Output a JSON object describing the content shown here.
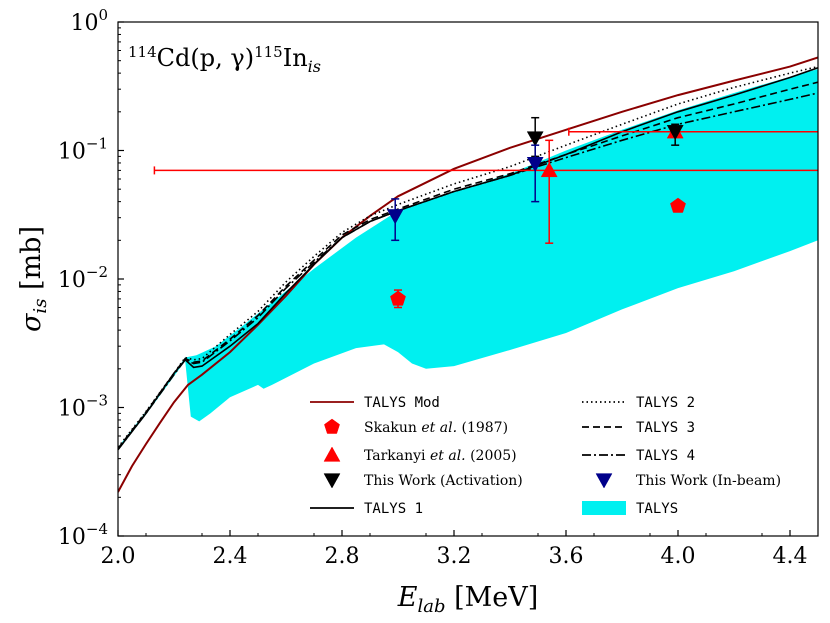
{
  "chart_data": {
    "type": "line",
    "title": "",
    "annotation": {
      "reaction_target_mass": "114",
      "reaction_target": "Cd",
      "reaction_channel": "(p, γ)",
      "reaction_product_mass": "115",
      "reaction_product": "In",
      "reaction_product_sub": "is"
    },
    "xlabel": {
      "symbol": "E",
      "sub": "lab",
      "unit": "[MeV]"
    },
    "ylabel": {
      "symbol": "σ",
      "sub": "is",
      "unit": "[mb]"
    },
    "xlim": [
      2.0,
      4.5
    ],
    "ylim": [
      0.0001,
      1
    ],
    "yscale": "log",
    "grid": false,
    "legend_position": "lower-right",
    "x_ticks": [
      {
        "value": 2.0,
        "label": "2.0"
      },
      {
        "value": 2.4,
        "label": "2.4"
      },
      {
        "value": 2.8,
        "label": "2.8"
      },
      {
        "value": 3.2,
        "label": "3.2"
      },
      {
        "value": 3.6,
        "label": "3.6"
      },
      {
        "value": 4.0,
        "label": "4.0"
      },
      {
        "value": 4.4,
        "label": "4.4"
      }
    ],
    "y_ticks": [
      {
        "value": 0.0001,
        "base": "10",
        "exp": "−4"
      },
      {
        "value": 0.001,
        "base": "10",
        "exp": "−3"
      },
      {
        "value": 0.01,
        "base": "10",
        "exp": "−2"
      },
      {
        "value": 0.1,
        "base": "10",
        "exp": "−1"
      },
      {
        "value": 1,
        "base": "10",
        "exp": "0"
      }
    ],
    "band": {
      "name": "TALYS",
      "color": "#00f0f0",
      "upper": [
        [
          2.0,
          0.00049
        ],
        [
          2.1,
          0.00093
        ],
        [
          2.2,
          0.00185
        ],
        [
          2.24,
          0.00245
        ],
        [
          2.28,
          0.00255
        ],
        [
          2.35,
          0.003
        ],
        [
          2.45,
          0.0044
        ],
        [
          2.55,
          0.0066
        ],
        [
          2.7,
          0.012
        ],
        [
          2.85,
          0.021
        ],
        [
          3.0,
          0.034
        ],
        [
          3.2,
          0.048
        ],
        [
          3.4,
          0.066
        ],
        [
          3.6,
          0.1
        ],
        [
          3.8,
          0.145
        ],
        [
          4.0,
          0.205
        ],
        [
          4.2,
          0.28
        ],
        [
          4.4,
          0.375
        ],
        [
          4.5,
          0.43
        ]
      ],
      "lower": [
        [
          2.0,
          0.00046
        ],
        [
          2.1,
          0.00088
        ],
        [
          2.2,
          0.00175
        ],
        [
          2.24,
          0.0023
        ],
        [
          2.26,
          0.00085
        ],
        [
          2.29,
          0.00078
        ],
        [
          2.33,
          0.0009
        ],
        [
          2.4,
          0.0012
        ],
        [
          2.5,
          0.0015
        ],
        [
          2.52,
          0.0014
        ],
        [
          2.55,
          0.0015
        ],
        [
          2.7,
          0.0022
        ],
        [
          2.85,
          0.0029
        ],
        [
          2.95,
          0.0031
        ],
        [
          3.0,
          0.0027
        ],
        [
          3.05,
          0.0022
        ],
        [
          3.1,
          0.002
        ],
        [
          3.2,
          0.0021
        ],
        [
          3.4,
          0.0028
        ],
        [
          3.6,
          0.0038
        ],
        [
          3.8,
          0.0058
        ],
        [
          4.0,
          0.0085
        ],
        [
          4.2,
          0.0115
        ],
        [
          4.4,
          0.0165
        ],
        [
          4.5,
          0.02
        ]
      ]
    },
    "series": [
      {
        "name": "TALYS Mod",
        "color": "#8b0000",
        "dash": "solid",
        "points": [
          [
            2.0,
            0.00022
          ],
          [
            2.05,
            0.00035
          ],
          [
            2.1,
            0.00052
          ],
          [
            2.15,
            0.00076
          ],
          [
            2.2,
            0.0011
          ],
          [
            2.25,
            0.0015
          ],
          [
            2.3,
            0.0018
          ],
          [
            2.4,
            0.0027
          ],
          [
            2.5,
            0.0044
          ],
          [
            2.6,
            0.0074
          ],
          [
            2.7,
            0.013
          ],
          [
            2.8,
            0.021
          ],
          [
            2.9,
            0.031
          ],
          [
            3.0,
            0.044
          ],
          [
            3.2,
            0.072
          ],
          [
            3.4,
            0.105
          ],
          [
            3.6,
            0.145
          ],
          [
            3.8,
            0.2
          ],
          [
            4.0,
            0.27
          ],
          [
            4.2,
            0.35
          ],
          [
            4.4,
            0.45
          ],
          [
            4.5,
            0.53
          ]
        ]
      },
      {
        "name": "TALYS 1",
        "color": "#000000",
        "dash": "solid",
        "points": [
          [
            2.0,
            0.00047
          ],
          [
            2.1,
            0.0009
          ],
          [
            2.2,
            0.00185
          ],
          [
            2.24,
            0.00235
          ],
          [
            2.27,
            0.00205
          ],
          [
            2.3,
            0.0021
          ],
          [
            2.4,
            0.003
          ],
          [
            2.5,
            0.0045
          ],
          [
            2.6,
            0.0078
          ],
          [
            2.7,
            0.013
          ],
          [
            2.8,
            0.021
          ],
          [
            2.9,
            0.028
          ],
          [
            3.0,
            0.034
          ],
          [
            3.2,
            0.048
          ],
          [
            3.4,
            0.064
          ],
          [
            3.6,
            0.093
          ],
          [
            3.8,
            0.14
          ],
          [
            4.0,
            0.2
          ],
          [
            4.2,
            0.27
          ],
          [
            4.4,
            0.37
          ],
          [
            4.5,
            0.44
          ]
        ]
      },
      {
        "name": "TALYS 2",
        "color": "#000000",
        "dash": "dotted",
        "points": [
          [
            2.0,
            0.00049
          ],
          [
            2.1,
            0.00093
          ],
          [
            2.2,
            0.00185
          ],
          [
            2.24,
            0.00245
          ],
          [
            2.27,
            0.00235
          ],
          [
            2.3,
            0.0024
          ],
          [
            2.4,
            0.0037
          ],
          [
            2.5,
            0.0056
          ],
          [
            2.6,
            0.0095
          ],
          [
            2.7,
            0.015
          ],
          [
            2.8,
            0.023
          ],
          [
            2.9,
            0.031
          ],
          [
            3.0,
            0.038
          ],
          [
            3.2,
            0.055
          ],
          [
            3.4,
            0.075
          ],
          [
            3.6,
            0.11
          ],
          [
            3.8,
            0.16
          ],
          [
            4.0,
            0.23
          ],
          [
            4.2,
            0.31
          ],
          [
            4.4,
            0.4
          ],
          [
            4.5,
            0.45
          ]
        ]
      },
      {
        "name": "TALYS 3",
        "color": "#000000",
        "dash": "dashed",
        "points": [
          [
            2.0,
            0.00048
          ],
          [
            2.1,
            0.00092
          ],
          [
            2.2,
            0.00185
          ],
          [
            2.24,
            0.0024
          ],
          [
            2.27,
            0.00225
          ],
          [
            2.3,
            0.0023
          ],
          [
            2.4,
            0.0034
          ],
          [
            2.5,
            0.0052
          ],
          [
            2.6,
            0.0088
          ],
          [
            2.7,
            0.014
          ],
          [
            2.8,
            0.022
          ],
          [
            2.9,
            0.029
          ],
          [
            3.0,
            0.035
          ],
          [
            3.2,
            0.05
          ],
          [
            3.4,
            0.066
          ],
          [
            3.6,
            0.093
          ],
          [
            3.8,
            0.13
          ],
          [
            4.0,
            0.18
          ],
          [
            4.2,
            0.23
          ],
          [
            4.4,
            0.3
          ],
          [
            4.5,
            0.34
          ]
        ]
      },
      {
        "name": "TALYS 4",
        "color": "#000000",
        "dash": "dashdot",
        "points": [
          [
            2.0,
            0.00047
          ],
          [
            2.1,
            0.0009
          ],
          [
            2.2,
            0.0018
          ],
          [
            2.24,
            0.00235
          ],
          [
            2.27,
            0.0022
          ],
          [
            2.3,
            0.00225
          ],
          [
            2.4,
            0.0033
          ],
          [
            2.5,
            0.005
          ],
          [
            2.6,
            0.0085
          ],
          [
            2.7,
            0.0135
          ],
          [
            2.8,
            0.021
          ],
          [
            2.9,
            0.028
          ],
          [
            3.0,
            0.034
          ],
          [
            3.2,
            0.048
          ],
          [
            3.4,
            0.064
          ],
          [
            3.6,
            0.088
          ],
          [
            3.8,
            0.12
          ],
          [
            4.0,
            0.16
          ],
          [
            4.2,
            0.2
          ],
          [
            4.4,
            0.25
          ],
          [
            4.5,
            0.28
          ]
        ]
      }
    ],
    "points": [
      {
        "name": "Skakun et al. (1987)",
        "color": "#ff0000",
        "marker": "pentagon",
        "data": [
          {
            "x": 3.0,
            "y": 0.007,
            "ylo": 0.006,
            "yhi": 0.0082
          },
          {
            "x": 4.0,
            "y": 0.037
          }
        ]
      },
      {
        "name": "Tarkanyi et al. (2005)",
        "color": "#ff0000",
        "marker": "triangle-up",
        "data": [
          {
            "x": 3.54,
            "y": 0.07,
            "ylo": 0.019,
            "yhi": 0.12,
            "xlo": 2.13,
            "xhi": 4.5
          },
          {
            "x": 3.99,
            "y": 0.14,
            "xlo": 3.61,
            "xhi": 4.5
          }
        ]
      },
      {
        "name": "This Work (Activation)",
        "color": "#000000",
        "marker": "triangle-down",
        "data": [
          {
            "x": 3.49,
            "y": 0.125,
            "ylo": 0.09,
            "yhi": 0.18
          },
          {
            "x": 3.99,
            "y": 0.14,
            "ylo": 0.11,
            "yhi": 0.16
          }
        ]
      },
      {
        "name": "This Work (In-beam)",
        "color": "#00008b",
        "marker": "triangle-down",
        "data": [
          {
            "x": 2.99,
            "y": 0.031,
            "ylo": 0.02,
            "yhi": 0.042
          },
          {
            "x": 3.49,
            "y": 0.079,
            "ylo": 0.04,
            "yhi": 0.11
          }
        ]
      }
    ],
    "legend": [
      {
        "label": "TALYS Mod",
        "style": "mono",
        "kind": "line",
        "color": "#8b0000",
        "dash": "solid"
      },
      {
        "label": "Skakun",
        "italic": "et al.",
        "rest": " (1987)",
        "style": "serif",
        "kind": "marker",
        "marker": "pentagon",
        "color": "#ff0000"
      },
      {
        "label": "Tarkanyi",
        "italic": "et al.",
        "rest": " (2005)",
        "style": "serif",
        "kind": "marker",
        "marker": "triangle-up",
        "color": "#ff0000"
      },
      {
        "label": "This Work (Activation)",
        "style": "serif",
        "kind": "marker",
        "marker": "triangle-down",
        "color": "#000000"
      },
      {
        "label": "TALYS 1",
        "style": "mono",
        "kind": "line",
        "color": "#000000",
        "dash": "solid"
      },
      {
        "label": "TALYS 2",
        "style": "mono",
        "kind": "line",
        "color": "#000000",
        "dash": "dotted"
      },
      {
        "label": "TALYS 3",
        "style": "mono",
        "kind": "line",
        "color": "#000000",
        "dash": "dashed"
      },
      {
        "label": "TALYS 4",
        "style": "mono",
        "kind": "line",
        "color": "#000000",
        "dash": "dashdot"
      },
      {
        "label": "This Work (In-beam)",
        "style": "serif",
        "kind": "marker",
        "marker": "triangle-down",
        "color": "#00008b"
      },
      {
        "label": "TALYS",
        "style": "mono",
        "kind": "band",
        "color": "#00f0f0"
      }
    ]
  }
}
